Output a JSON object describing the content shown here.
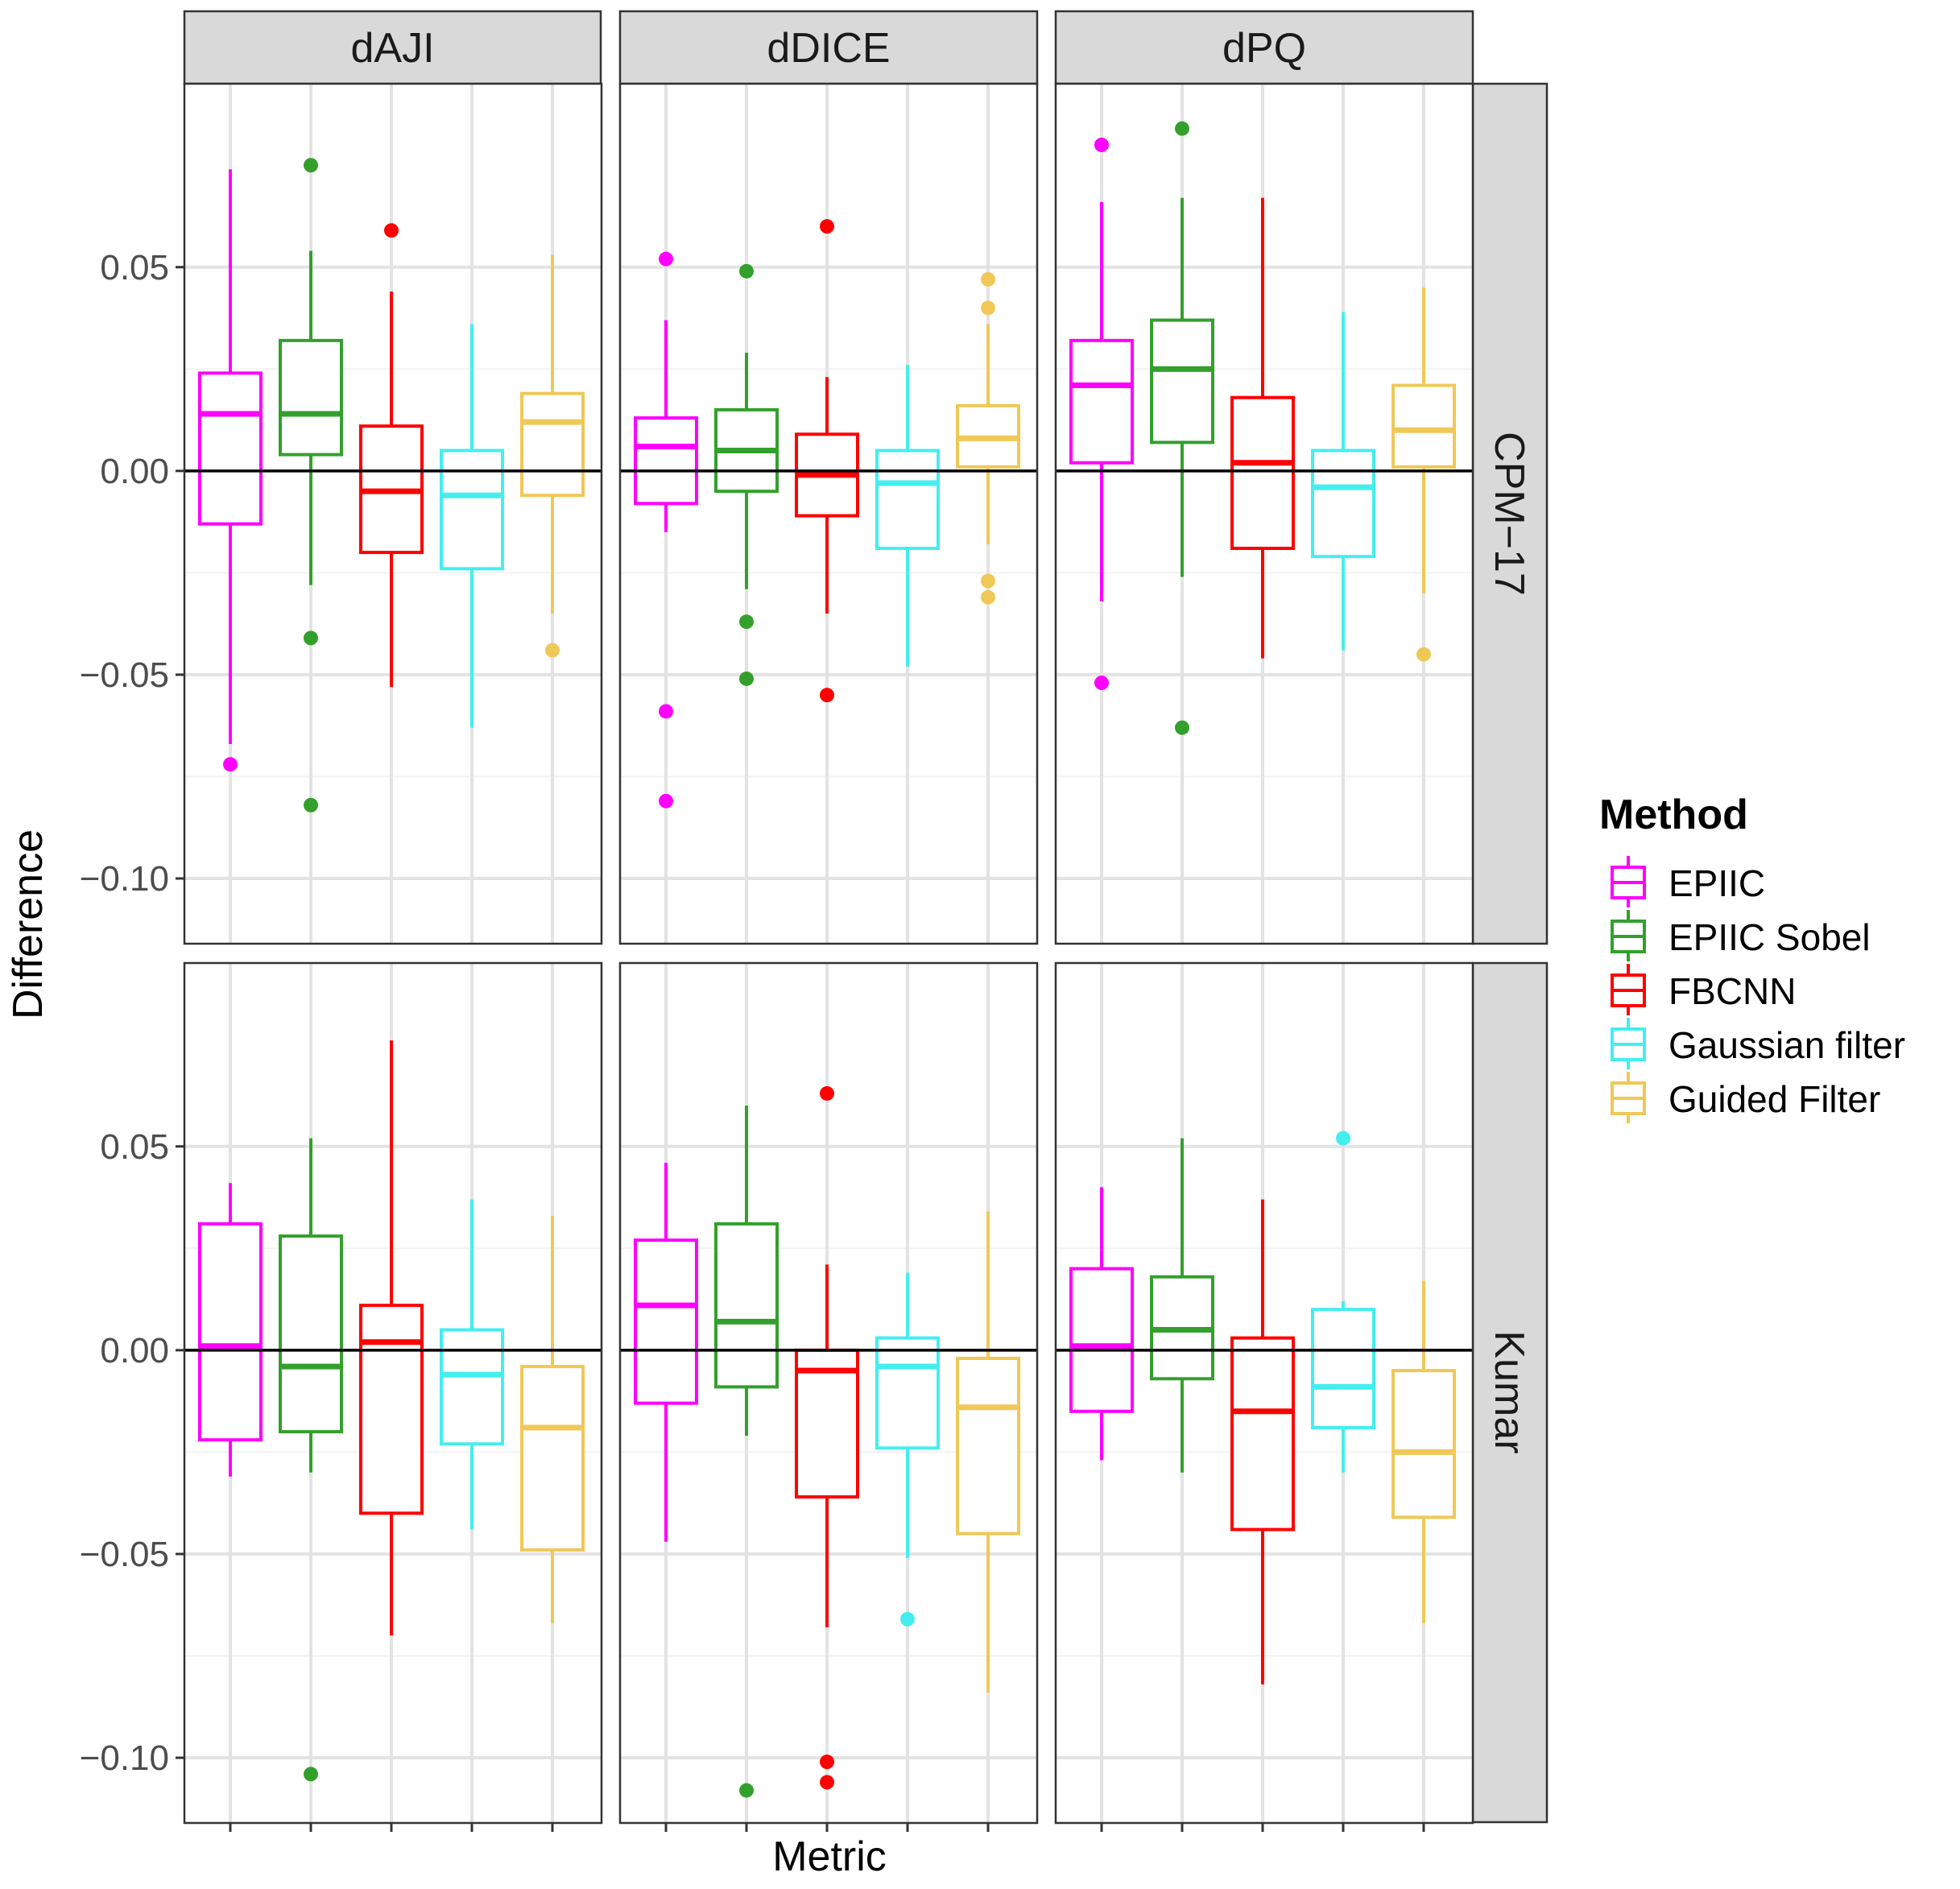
{
  "chart_data": {
    "type": "boxplot",
    "xlabel": "Metric",
    "ylabel": "Difference",
    "ylim": [
      -0.116,
      0.095
    ],
    "y_ticks": [
      -0.1,
      -0.05,
      0.0,
      0.05
    ],
    "y_tick_labels": [
      "−0.10",
      "−0.05",
      "0.00",
      "0.05"
    ],
    "reference_line": 0,
    "columns": [
      "dAJI",
      "dDICE",
      "dPQ"
    ],
    "rows": [
      "CPM−17",
      "Kumar"
    ],
    "legend": {
      "title": "Method",
      "items": [
        {
          "label": "EPIIC",
          "color": "#ff00ff"
        },
        {
          "label": "EPIIC Sobel",
          "color": "#33a02c"
        },
        {
          "label": "FBCNN",
          "color": "#ff0000"
        },
        {
          "label": "Gaussian filter",
          "color": "#44eeee"
        },
        {
          "label": "Guided Filter",
          "color": "#f0c857"
        }
      ]
    },
    "panels": [
      {
        "row": 0,
        "col": 0,
        "boxes": [
          {
            "method": "EPIIC",
            "lower": -0.067,
            "q1": -0.013,
            "median": 0.014,
            "q3": 0.024,
            "upper": 0.074,
            "outliers": [
              -0.072
            ]
          },
          {
            "method": "EPIIC Sobel",
            "lower": -0.028,
            "q1": 0.004,
            "median": 0.014,
            "q3": 0.032,
            "upper": 0.054,
            "outliers": [
              0.075,
              -0.041,
              -0.082
            ]
          },
          {
            "method": "FBCNN",
            "lower": -0.053,
            "q1": -0.02,
            "median": -0.005,
            "q3": 0.011,
            "upper": 0.044,
            "outliers": [
              0.059
            ]
          },
          {
            "method": "Gaussian filter",
            "lower": -0.063,
            "q1": -0.024,
            "median": -0.006,
            "q3": 0.005,
            "upper": 0.036,
            "outliers": []
          },
          {
            "method": "Guided Filter",
            "lower": -0.035,
            "q1": -0.006,
            "median": 0.012,
            "q3": 0.019,
            "upper": 0.053,
            "outliers": [
              -0.044
            ]
          }
        ]
      },
      {
        "row": 0,
        "col": 1,
        "boxes": [
          {
            "method": "EPIIC",
            "lower": -0.015,
            "q1": -0.008,
            "median": 0.006,
            "q3": 0.013,
            "upper": 0.037,
            "outliers": [
              0.052,
              -0.059,
              -0.081
            ]
          },
          {
            "method": "EPIIC Sobel",
            "lower": -0.029,
            "q1": -0.005,
            "median": 0.005,
            "q3": 0.015,
            "upper": 0.029,
            "outliers": [
              0.049,
              -0.037,
              -0.051
            ]
          },
          {
            "method": "FBCNN",
            "lower": -0.035,
            "q1": -0.011,
            "median": -0.001,
            "q3": 0.009,
            "upper": 0.023,
            "outliers": [
              0.06,
              -0.055
            ]
          },
          {
            "method": "Gaussian filter",
            "lower": -0.048,
            "q1": -0.019,
            "median": -0.003,
            "q3": 0.005,
            "upper": 0.026,
            "outliers": []
          },
          {
            "method": "Guided Filter",
            "lower": -0.018,
            "q1": 0.001,
            "median": 0.008,
            "q3": 0.016,
            "upper": 0.036,
            "outliers": [
              0.047,
              0.04,
              -0.027,
              -0.031
            ]
          }
        ]
      },
      {
        "row": 0,
        "col": 2,
        "boxes": [
          {
            "method": "EPIIC",
            "lower": -0.032,
            "q1": 0.002,
            "median": 0.021,
            "q3": 0.032,
            "upper": 0.066,
            "outliers": [
              0.08,
              -0.052
            ]
          },
          {
            "method": "EPIIC Sobel",
            "lower": -0.026,
            "q1": 0.007,
            "median": 0.025,
            "q3": 0.037,
            "upper": 0.067,
            "outliers": [
              0.084,
              -0.063
            ]
          },
          {
            "method": "FBCNN",
            "lower": -0.046,
            "q1": -0.019,
            "median": 0.002,
            "q3": 0.018,
            "upper": 0.067,
            "outliers": []
          },
          {
            "method": "Gaussian filter",
            "lower": -0.044,
            "q1": -0.021,
            "median": -0.004,
            "q3": 0.005,
            "upper": 0.039,
            "outliers": []
          },
          {
            "method": "Guided Filter",
            "lower": -0.03,
            "q1": 0.001,
            "median": 0.01,
            "q3": 0.021,
            "upper": 0.045,
            "outliers": [
              -0.045
            ]
          }
        ]
      },
      {
        "row": 1,
        "col": 0,
        "boxes": [
          {
            "method": "EPIIC",
            "lower": -0.031,
            "q1": -0.022,
            "median": 0.001,
            "q3": 0.031,
            "upper": 0.041,
            "outliers": []
          },
          {
            "method": "EPIIC Sobel",
            "lower": -0.03,
            "q1": -0.02,
            "median": -0.004,
            "q3": 0.028,
            "upper": 0.052,
            "outliers": [
              -0.104
            ]
          },
          {
            "method": "FBCNN",
            "lower": -0.07,
            "q1": -0.04,
            "median": 0.002,
            "q3": 0.011,
            "upper": 0.076,
            "outliers": []
          },
          {
            "method": "Gaussian filter",
            "lower": -0.044,
            "q1": -0.023,
            "median": -0.006,
            "q3": 0.005,
            "upper": 0.037,
            "outliers": []
          },
          {
            "method": "Guided Filter",
            "lower": -0.067,
            "q1": -0.049,
            "median": -0.019,
            "q3": -0.004,
            "upper": 0.033,
            "outliers": []
          }
        ]
      },
      {
        "row": 1,
        "col": 1,
        "boxes": [
          {
            "method": "EPIIC",
            "lower": -0.047,
            "q1": -0.013,
            "median": 0.011,
            "q3": 0.027,
            "upper": 0.046,
            "outliers": []
          },
          {
            "method": "EPIIC Sobel",
            "lower": -0.021,
            "q1": -0.009,
            "median": 0.007,
            "q3": 0.031,
            "upper": 0.06,
            "outliers": [
              -0.108
            ]
          },
          {
            "method": "FBCNN",
            "lower": -0.068,
            "q1": -0.036,
            "median": -0.005,
            "q3": 0.0,
            "upper": 0.021,
            "outliers": [
              0.063,
              -0.101,
              -0.106
            ]
          },
          {
            "method": "Gaussian filter",
            "lower": -0.051,
            "q1": -0.024,
            "median": -0.004,
            "q3": 0.003,
            "upper": 0.019,
            "outliers": [
              -0.066
            ]
          },
          {
            "method": "Guided Filter",
            "lower": -0.084,
            "q1": -0.045,
            "median": -0.014,
            "q3": -0.002,
            "upper": 0.034,
            "outliers": []
          }
        ]
      },
      {
        "row": 1,
        "col": 2,
        "boxes": [
          {
            "method": "EPIIC",
            "lower": -0.027,
            "q1": -0.015,
            "median": 0.001,
            "q3": 0.02,
            "upper": 0.04,
            "outliers": []
          },
          {
            "method": "EPIIC Sobel",
            "lower": -0.03,
            "q1": -0.007,
            "median": 0.005,
            "q3": 0.018,
            "upper": 0.052,
            "outliers": []
          },
          {
            "method": "FBCNN",
            "lower": -0.082,
            "q1": -0.044,
            "median": -0.015,
            "q3": 0.003,
            "upper": 0.037,
            "outliers": []
          },
          {
            "method": "Gaussian filter",
            "lower": -0.03,
            "q1": -0.019,
            "median": -0.009,
            "q3": 0.01,
            "upper": 0.012,
            "outliers": [
              0.052
            ]
          },
          {
            "method": "Guided Filter",
            "lower": -0.067,
            "q1": -0.041,
            "median": -0.025,
            "q3": -0.005,
            "upper": 0.017,
            "outliers": []
          }
        ]
      }
    ]
  }
}
